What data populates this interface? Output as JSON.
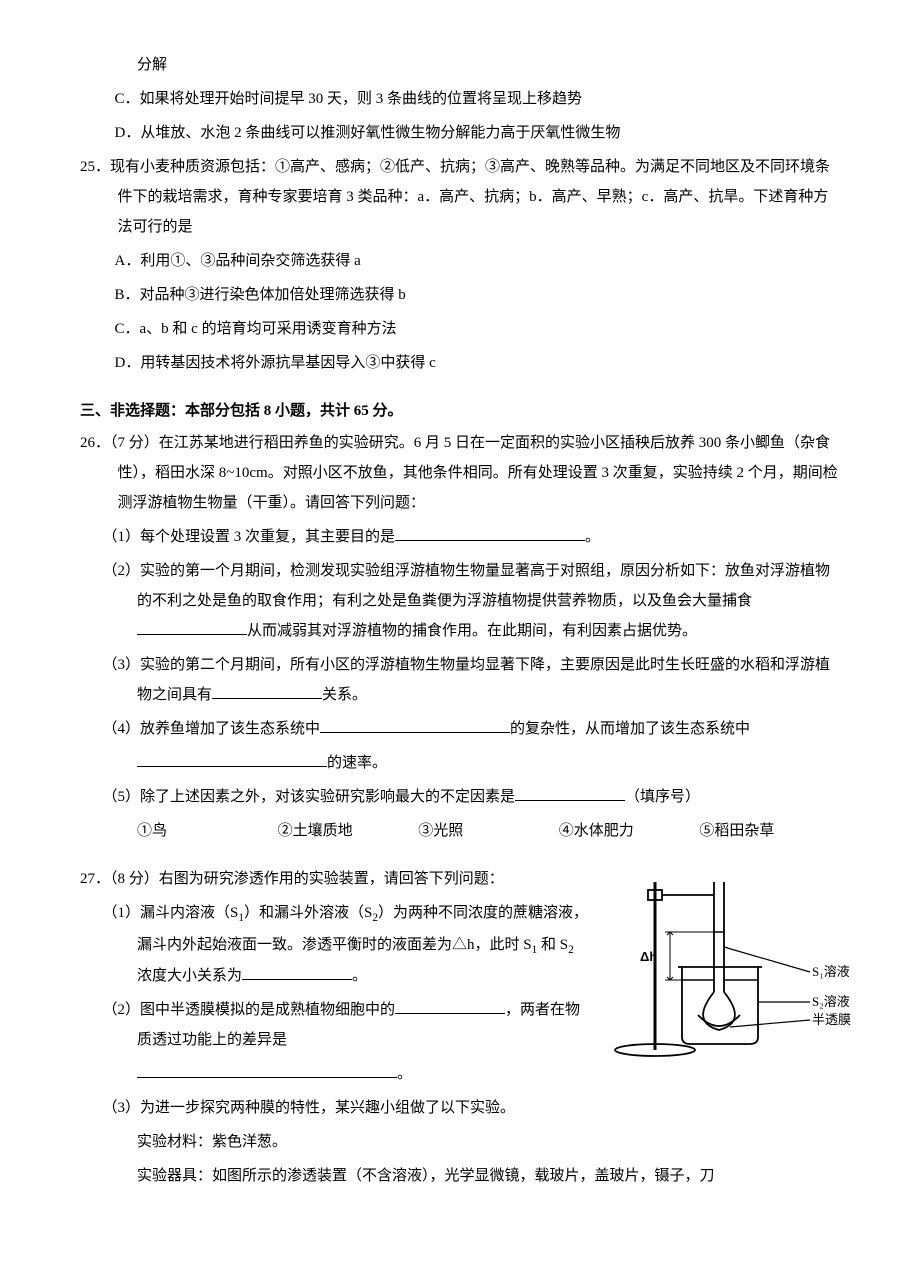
{
  "q24": {
    "cont": "分解",
    "C": "C．如果将处理开始时间提早 30 天，则 3 条曲线的位置将呈现上移趋势",
    "D": "D．从堆放、水泡 2 条曲线可以推测好氧性微生物分解能力高于厌氧性微生物"
  },
  "q25": {
    "num": "25．",
    "stem": "现有小麦种质资源包括：①高产、感病；②低产、抗病；③高产、晚熟等品种。为满足不同地区及不同环境条件下的栽培需求，育种专家要培育 3 类品种：a．高产、抗病；b．高产、早熟；c．高产、抗旱。下述育种方法可行的是",
    "A": "A．利用①、③品种间杂交筛选获得 a",
    "B": "B．对品种③进行染色体加倍处理筛选获得 b",
    "C": "C．a、b 和 c 的培育均可采用诱变育种方法",
    "D": "D．用转基因技术将外源抗旱基因导入③中获得 c"
  },
  "section": "三、非选择题：本部分包括 8 小题，共计 65 分。",
  "q26": {
    "num": "26．",
    "points": "（7 分）",
    "stem1": "在江苏某地进行稻田养鱼的实验研究。6 月 5 日在一定面积的实验小区插秧后放养 300 条小鲫鱼（杂食性），稻田水深 8~10cm。对照小区不放鱼，其他条件相同。所有处理设置 3 次重复，实验持续 2 个月，期间检测浮游植物生物量（干重）。请回答下列问题：",
    "sub1": "（1）每个处理设置 3 次重复，其主要目的是",
    "sub1_tail": "。",
    "sub2a": "（2）实验的第一个月期间，检测发现实验组浮游植物生物量显著高于对照组，原因分析如下：放鱼对浮游植物的不利之处是鱼的取食作用；有利之处是鱼粪便为浮游植物提供营养物质，以及鱼会大量捕食",
    "sub2b": "从而减弱其对浮游植物的捕食作用。在此期间，有利因素占据优势。",
    "sub3a": "（3）实验的第二个月期间，所有小区的浮游植物生物量均显著下降，主要原因是此时生长旺盛的水稻和浮游植物之间具有",
    "sub3b": "关系。",
    "sub4a": "（4）放养鱼增加了该生态系统中",
    "sub4b": "的复杂性，从而增加了该生态系统中",
    "sub4c": "的速率。",
    "sub5a": "（5）除了上述因素之外，对该实验研究影响最大的不定因素是",
    "sub5b": "（填序号）",
    "opts": {
      "o1": "①鸟",
      "o2": "②土壤质地",
      "o3": "③光照",
      "o4": "④水体肥力",
      "o5": "⑤稻田杂草"
    }
  },
  "q27": {
    "num": "27．",
    "points": "（8 分）",
    "stem": "右图为研究渗透作用的实验装置，请回答下列问题：",
    "sub1a_html": "（1）漏斗内溶液（S<sub>1</sub>）和漏斗外溶液（S<sub>2</sub>）为两种不同浓度的蔗糖溶液，漏斗内外起始液面一致。渗透平衡时的液面差为△h，此时 S<sub>1</sub> 和 S<sub>2</sub> 浓度大小关系为",
    "sub1b": "。",
    "sub2a": "（2）图中半透膜模拟的是成熟植物细胞中的",
    "sub2b": "，两者在物质透过功能上的差异是",
    "sub2c": "。",
    "sub3": "（3）为进一步探究两种膜的特性，某兴趣小组做了以下实验。",
    "sub3_mat": "实验材料：紫色洋葱。",
    "sub3_dev": "实验器具：如图所示的渗透装置（不含溶液），光学显微镜，载玻片，盖玻片，镊子，刀",
    "figure": {
      "dh_label": "Δh",
      "s1_label": "S₁溶液",
      "s2_label": "S₂溶液",
      "mem_label": "半透膜"
    }
  }
}
